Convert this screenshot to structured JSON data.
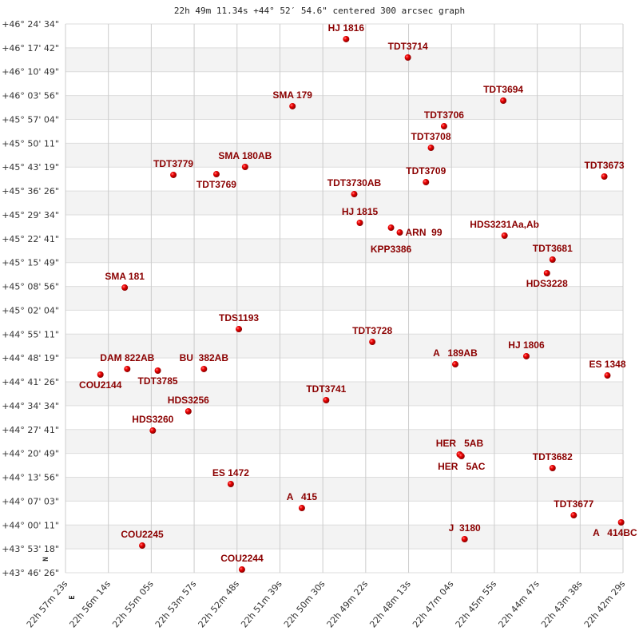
{
  "chart_data": {
    "type": "scatter",
    "title": "22h 49m 11.34s +44° 52′ 54.6\" centered 300 arcsec graph",
    "x_ticks": [
      "22h 57m 23s",
      "22h 56m 14s",
      "22h 55m 05s",
      "22h 53m 57s",
      "22h 52m 48s",
      "22h 51m 39s",
      "22h 50m 30s",
      "22h 49m 22s",
      "22h 48m 13s",
      "22h 47m 04s",
      "22h 45m 55s",
      "22h 44m 47s",
      "22h 43m 38s",
      "22h 42m 29s"
    ],
    "y_ticks": [
      "+46° 24' 34\"",
      "+46° 17' 42\"",
      "+46° 10' 49\"",
      "+46° 03' 56\"",
      "+45° 57' 04\"",
      "+45° 50' 11\"",
      "+45° 43' 19\"",
      "+45° 36' 26\"",
      "+45° 29' 34\"",
      "+45° 22' 41\"",
      "+45° 15' 49\"",
      "+45° 08' 56\"",
      "+45° 02' 04\"",
      "+44° 55' 11\"",
      "+44° 48' 19\"",
      "+44° 41' 26\"",
      "+44° 34' 34\"",
      "+44° 27' 41\"",
      "+44° 20' 49\"",
      "+44° 13' 56\"",
      "+44° 07' 03\"",
      "+44° 00' 11\"",
      "+43° 53' 18\"",
      "+43° 46' 26\""
    ],
    "xlim": [
      "22 57 23",
      "22 42 29"
    ],
    "ylim": [
      "+43 46 26",
      "+46 24 34"
    ],
    "x_reversed": true,
    "grid": true,
    "compass": {
      "north": "N",
      "east": "E"
    },
    "colors": {
      "point": "#dd0000",
      "label": "#8b0000",
      "band": "#f3f3f3",
      "grid": "#cccccc"
    },
    "points": [
      {
        "name": "HJ 1816",
        "ra": "22 49 53",
        "dec": "+46 20 12"
      },
      {
        "name": "TDT3714",
        "ra": "22 48 14",
        "dec": "+46 14 54"
      },
      {
        "name": "SMA 179",
        "ra": "22 51 19",
        "dec": "+46 00 52"
      },
      {
        "name": "TDT3694",
        "ra": "22 45 41",
        "dec": "+46 02 28"
      },
      {
        "name": "TDT3706",
        "ra": "22 47 16",
        "dec": "+45 55 06"
      },
      {
        "name": "TDT3708",
        "ra": "22 47 37",
        "dec": "+45 48 53"
      },
      {
        "name": "SMA 180AB",
        "ra": "22 52 35",
        "dec": "+45 43 22"
      },
      {
        "name": "TDT3769",
        "ra": "22 53 21",
        "dec": "+45 41 17"
      },
      {
        "name": "TDT3779",
        "ra": "22 54 30",
        "dec": "+45 41 04"
      },
      {
        "name": "TDT3709",
        "ra": "22 47 45",
        "dec": "+45 38 59"
      },
      {
        "name": "TDT3673",
        "ra": "22 42 59",
        "dec": "+45 40 36"
      },
      {
        "name": "TDT3730AB",
        "ra": "22 49 40",
        "dec": "+45 35 32"
      },
      {
        "name": "HJ 1815",
        "ra": "22 49 31",
        "dec": "+45 27 15"
      },
      {
        "name": "KPP3386",
        "ra": "22 48 41",
        "dec": "+45 25 52"
      },
      {
        "name": "ARN  99",
        "ra": "22 48 27",
        "dec": "+45 24 29"
      },
      {
        "name": "HDS3231Aa,Ab",
        "ra": "22 45 39",
        "dec": "+45 23 34"
      },
      {
        "name": "TDT3681",
        "ra": "22 44 22",
        "dec": "+45 16 40"
      },
      {
        "name": "HDS3228",
        "ra": "22 44 31",
        "dec": "+45 12 45"
      },
      {
        "name": "SMA 181",
        "ra": "22 55 48",
        "dec": "+45 08 36"
      },
      {
        "name": "TDS1193",
        "ra": "22 52 45",
        "dec": "+44 56 38"
      },
      {
        "name": "TDT3728",
        "ra": "22 49 11",
        "dec": "+44 52 57"
      },
      {
        "name": "A   189AB",
        "ra": "22 46 58",
        "dec": "+44 46 30"
      },
      {
        "name": "HJ 1806",
        "ra": "22 45 04",
        "dec": "+44 48 49"
      },
      {
        "name": "ES 1348",
        "ra": "22 42 54",
        "dec": "+44 43 17"
      },
      {
        "name": "COU2144",
        "ra": "22 56 27",
        "dec": "+44 43 31"
      },
      {
        "name": "DAM 822AB",
        "ra": "22 55 44",
        "dec": "+44 45 08"
      },
      {
        "name": "TDT3785",
        "ra": "22 54 55",
        "dec": "+44 44 40"
      },
      {
        "name": "BU  382AB",
        "ra": "22 53 41",
        "dec": "+44 45 08"
      },
      {
        "name": "TDT3741",
        "ra": "22 50 25",
        "dec": "+44 36 09"
      },
      {
        "name": "HDS3256",
        "ra": "22 54 06",
        "dec": "+44 32 56"
      },
      {
        "name": "HDS3260",
        "ra": "22 55 03",
        "dec": "+44 27 24"
      },
      {
        "name": "HER   5AB",
        "ra": "22 46 51",
        "dec": "+44 20 30"
      },
      {
        "name": "HER   5AC",
        "ra": "22 46 48",
        "dec": "+44 20 02"
      },
      {
        "name": "TDT3682",
        "ra": "22 44 22",
        "dec": "+44 16 35"
      },
      {
        "name": "ES 1472",
        "ra": "22 52 58",
        "dec": "+44 11 59"
      },
      {
        "name": "A   415",
        "ra": "22 51 04",
        "dec": "+44 05 04"
      },
      {
        "name": "TDT3677",
        "ra": "22 43 48",
        "dec": "+44 03 00"
      },
      {
        "name": "A   414BC",
        "ra": "22 42 32",
        "dec": "+44 00 56"
      },
      {
        "name": "J  3180",
        "ra": "22 46 43",
        "dec": "+43 56 06"
      },
      {
        "name": "COU2245",
        "ra": "22 55 20",
        "dec": "+43 54 15"
      },
      {
        "name": "COU2244",
        "ra": "22 52 40",
        "dec": "+43 47 21"
      }
    ]
  }
}
